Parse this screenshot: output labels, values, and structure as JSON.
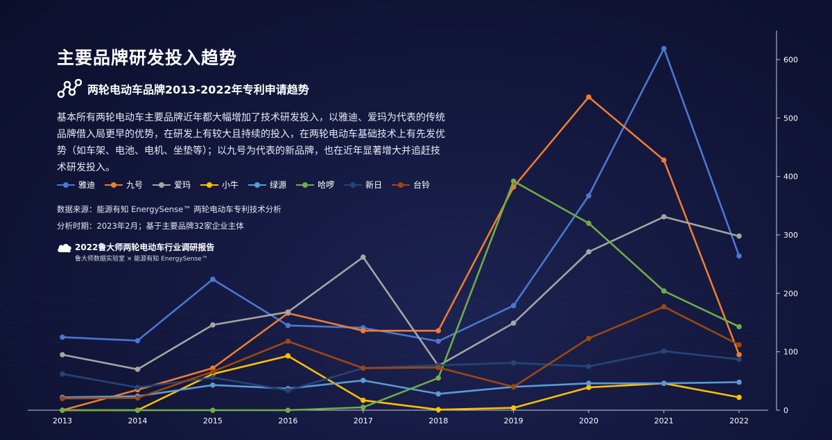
{
  "page": {
    "title": "主要品牌研发投入趋势",
    "subtitle": "两轮电动车品牌2013-2022年专利申请趋势",
    "description": "基本所有两轮电动车主要品牌近年都大幅增加了技术研发投入，以雅迪、爱玛为代表的传统品牌借入局更早的优势，在研发上有较大且持续的投入，在两轮电动车基础技术上有先发优势（如车架、电池、电机、坐垫等）；以九号为代表的新品牌，也在近年显著增大并追赶技术研发投入。",
    "source": "数据来源：能源有知 EnergySense™ 两轮电动车专利技术分析",
    "period": "分析时期：2023年2月；基于主要品牌32家企业主体",
    "report_title": "2022鲁大师两轮电动车行业调研报告",
    "report_subtitle": "鲁大师数据实验室 × 能源有知 EnergySense™",
    "icons": {
      "subtitle_icon": "network-nodes-icon",
      "report_logo": "cloud-logo-icon"
    }
  },
  "chart_data": {
    "type": "line",
    "x": [
      "2013",
      "2014",
      "2015",
      "2016",
      "2017",
      "2018",
      "2019",
      "2020",
      "2021",
      "2022"
    ],
    "ylim": [
      0,
      650
    ],
    "yticks": [
      0,
      100,
      200,
      300,
      400,
      500,
      600
    ],
    "y_axis_position": "right",
    "legend_position": "top-left",
    "series": [
      {
        "name": "雅迪",
        "color": "#4a78d4",
        "values": [
          125,
          119,
          224,
          145,
          141,
          118,
          179,
          367,
          619,
          264
        ]
      },
      {
        "name": "九号",
        "color": "#ed7d31",
        "values": [
          0,
          35,
          72,
          166,
          136,
          136,
          382,
          536,
          428,
          95
        ]
      },
      {
        "name": "爱玛",
        "color": "#a5a5a5",
        "values": [
          95,
          70,
          146,
          168,
          262,
          76,
          149,
          271,
          331,
          298
        ]
      },
      {
        "name": "小牛",
        "color": "#ffc000",
        "values": [
          0,
          0,
          62,
          93,
          17,
          1,
          4,
          39,
          46,
          22
        ]
      },
      {
        "name": "绿源",
        "color": "#5b9bd5",
        "values": [
          22,
          24,
          43,
          37,
          51,
          28,
          40,
          46,
          46,
          48
        ]
      },
      {
        "name": "哈啰",
        "color": "#70ad47",
        "values": [
          0,
          0,
          0,
          0,
          5,
          55,
          392,
          320,
          204,
          143
        ]
      },
      {
        "name": "新日",
        "color": "#264478",
        "values": [
          62,
          39,
          56,
          34,
          72,
          77,
          81,
          75,
          101,
          87
        ]
      },
      {
        "name": "台铃",
        "color": "#9e480e",
        "values": [
          20,
          21,
          66,
          118,
          72,
          73,
          40,
          123,
          177,
          112
        ]
      }
    ]
  }
}
